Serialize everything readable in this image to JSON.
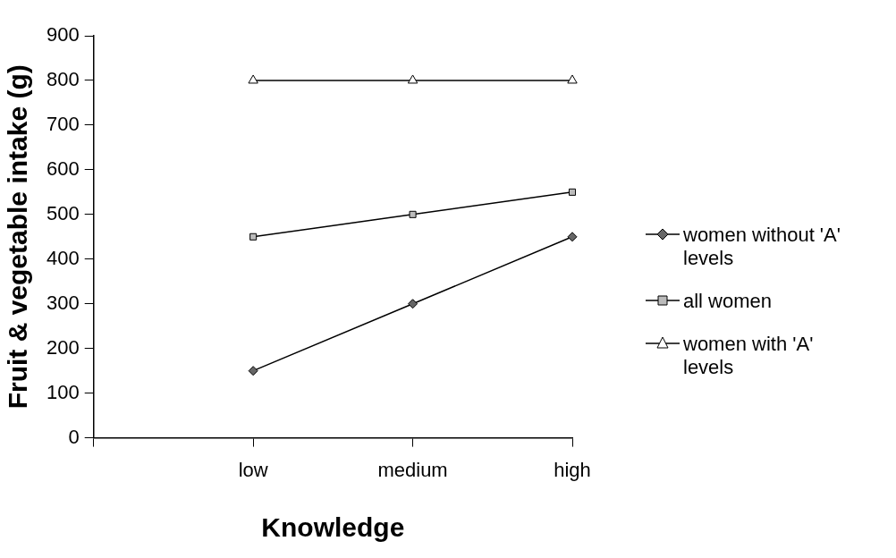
{
  "chart_data": {
    "type": "line",
    "xlabel": "Knowledge",
    "ylabel": "Fruit & vegetable intake (g)",
    "categories": [
      null,
      "low",
      "medium",
      "high"
    ],
    "series": [
      {
        "name": "women without 'A' levels",
        "color": "#000000",
        "marker": "diamond",
        "values": [
          null,
          150,
          300,
          450
        ]
      },
      {
        "name": "all women",
        "color": "#000000",
        "marker": "square",
        "values": [
          null,
          450,
          500,
          550
        ]
      },
      {
        "name": "women with 'A' levels",
        "color": "#000000",
        "marker": "triangle",
        "values": [
          null,
          800,
          800,
          800
        ]
      }
    ],
    "ylim": [
      0,
      900
    ],
    "yticks": [
      0,
      100,
      200,
      300,
      400,
      500,
      600,
      700,
      800,
      900
    ],
    "grid": false,
    "legend": "right"
  }
}
